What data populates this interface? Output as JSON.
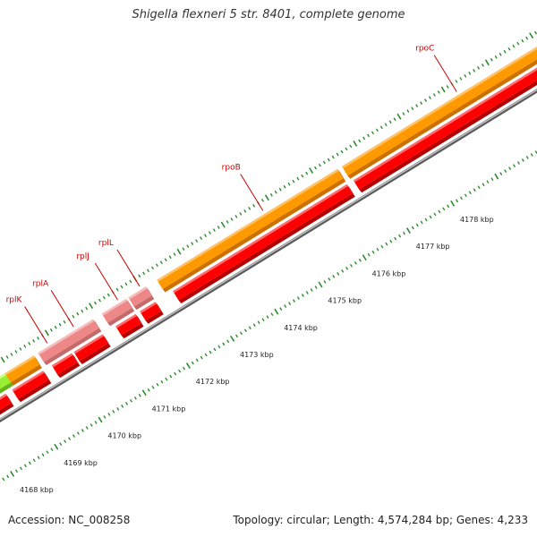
{
  "title": "Shigella flexneri 5 str. 8401, complete genome",
  "accession": "Accession: NC_008258",
  "topology": "Topology: circular; Length: 4,574,284 bp; Genes: 4,233",
  "colors": {
    "backbone": "#8a8a8a",
    "ticks": "#2e8b2e",
    "cds": "#ff0000",
    "gene": "#ff9900",
    "rna_gene": "#ee8888",
    "misc": "#99ee33",
    "label": "#cc0000"
  },
  "scale_ticks": [
    {
      "kbp": 4168,
      "label": "4168 kbp"
    },
    {
      "kbp": 4169,
      "label": "4169 kbp"
    },
    {
      "kbp": 4170,
      "label": "4170 kbp"
    },
    {
      "kbp": 4171,
      "label": "4171 kbp"
    },
    {
      "kbp": 4172,
      "label": "4172 kbp"
    },
    {
      "kbp": 4173,
      "label": "4173 kbp"
    },
    {
      "kbp": 4174,
      "label": "4174 kbp"
    },
    {
      "kbp": 4175,
      "label": "4175 kbp"
    },
    {
      "kbp": 4176,
      "label": "4176 kbp"
    },
    {
      "kbp": 4177,
      "label": "4177 kbp"
    },
    {
      "kbp": 4178,
      "label": "4178 kbp"
    }
  ],
  "gene_labels": [
    {
      "name": "rplK",
      "kbp": 4169.9
    },
    {
      "name": "rplA",
      "kbp": 4170.5
    },
    {
      "name": "rplJ",
      "kbp": 4171.5
    },
    {
      "name": "rplL",
      "kbp": 4172.0
    },
    {
      "name": "rpoB",
      "kbp": 4174.8
    },
    {
      "name": "rpoC",
      "kbp": 4179.2
    }
  ],
  "features": [
    {
      "type": "misc",
      "ring": "gene",
      "start": 4168.0,
      "end": 4168.9
    },
    {
      "type": "gene",
      "ring": "gene",
      "start": 4168.9,
      "end": 4169.55
    },
    {
      "type": "cds",
      "ring": "cds",
      "start": 4168.25,
      "end": 4168.7
    },
    {
      "type": "cds",
      "ring": "cds",
      "start": 4168.85,
      "end": 4169.55
    },
    {
      "type": "rna_gene",
      "ring": "gene",
      "start": 4169.65,
      "end": 4170.9
    },
    {
      "type": "cds",
      "ring": "cds",
      "start": 4169.75,
      "end": 4170.2
    },
    {
      "type": "cds",
      "ring": "cds",
      "start": 4170.25,
      "end": 4170.9
    },
    {
      "type": "rna_gene",
      "ring": "gene",
      "start": 4171.1,
      "end": 4171.65
    },
    {
      "type": "rna_gene",
      "ring": "gene",
      "start": 4171.7,
      "end": 4172.1
    },
    {
      "type": "cds",
      "ring": "cds",
      "start": 4171.2,
      "end": 4171.65
    },
    {
      "type": "cds",
      "ring": "cds",
      "start": 4171.75,
      "end": 4172.1
    },
    {
      "type": "gene",
      "ring": "gene",
      "start": 4172.35,
      "end": 4176.45
    },
    {
      "type": "cds",
      "ring": "cds",
      "start": 4172.5,
      "end": 4176.45
    },
    {
      "type": "gene",
      "ring": "gene",
      "start": 4176.55,
      "end": 4181.0
    },
    {
      "type": "cds",
      "ring": "cds",
      "start": 4176.6,
      "end": 4181.0
    }
  ]
}
